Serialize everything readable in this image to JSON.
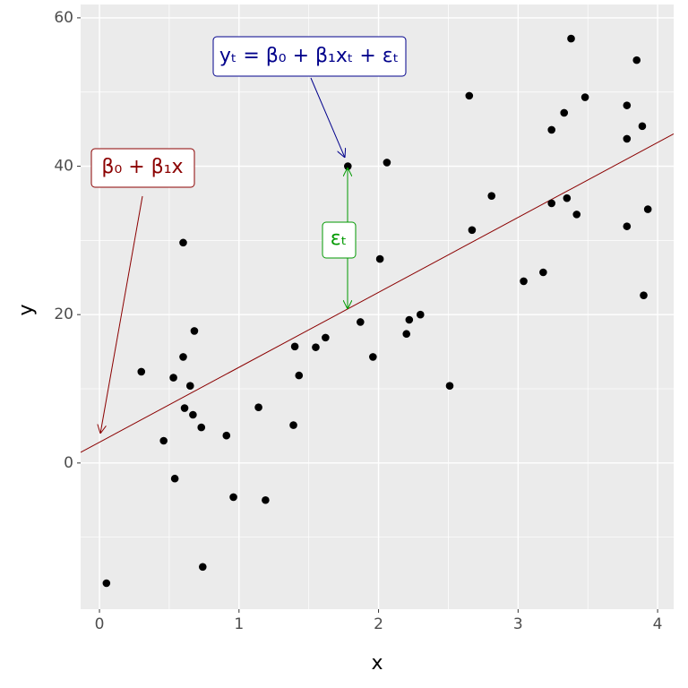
{
  "chart_data": {
    "type": "scatter",
    "x_label": "x",
    "y_label": "y",
    "xlim": [
      -0.135,
      4.115
    ],
    "ylim": [
      -19.7,
      61.8
    ],
    "xticks": [
      0,
      1,
      2,
      3,
      4
    ],
    "yticks": [
      0,
      20,
      40,
      60
    ],
    "x_minor_ticks": [
      0.5,
      1.5,
      2.5,
      3.5
    ],
    "y_minor_ticks": [
      -10,
      10,
      30,
      50
    ],
    "grid": true,
    "color": "#000000",
    "x": [
      0.05,
      0.3,
      0.46,
      0.53,
      0.54,
      0.6,
      0.6,
      0.61,
      0.65,
      0.67,
      0.68,
      0.73,
      0.74,
      0.91,
      0.96,
      1.14,
      1.19,
      1.39,
      1.4,
      1.43,
      1.55,
      1.62,
      1.78,
      1.87,
      1.96,
      2.01,
      2.06,
      2.2,
      2.22,
      2.3,
      2.51,
      2.65,
      2.67,
      2.81,
      3.04,
      3.18,
      3.24,
      3.24,
      3.33,
      3.35,
      3.38,
      3.42,
      3.48,
      3.78,
      3.78,
      3.78,
      3.85,
      3.89,
      3.9,
      3.93
    ],
    "values": [
      -16.2,
      12.3,
      3.0,
      11.5,
      -2.1,
      29.7,
      14.3,
      7.4,
      10.4,
      6.5,
      17.8,
      4.8,
      -14.0,
      3.7,
      -4.6,
      7.5,
      -5.0,
      5.1,
      15.7,
      11.8,
      15.6,
      16.9,
      40.0,
      19.0,
      14.3,
      27.5,
      40.5,
      17.4,
      19.3,
      20.0,
      10.4,
      49.5,
      31.4,
      36.0,
      24.5,
      25.7,
      44.9,
      35.0,
      47.2,
      35.7,
      57.2,
      33.5,
      49.3,
      48.2,
      43.7,
      31.9,
      54.3,
      45.4,
      22.6,
      34.2
    ],
    "fit_line": {
      "intercept": 2.8,
      "slope": 10.1,
      "color": "#8b0000"
    },
    "annotations": [
      {
        "text": "yₜ = β₀ + β₁xₜ + εₜ",
        "color": "#00008b"
      },
      {
        "text": "β₀ + β₁x",
        "color": "#8b0000"
      },
      {
        "text": "εₜ",
        "color": "#009900"
      }
    ]
  }
}
